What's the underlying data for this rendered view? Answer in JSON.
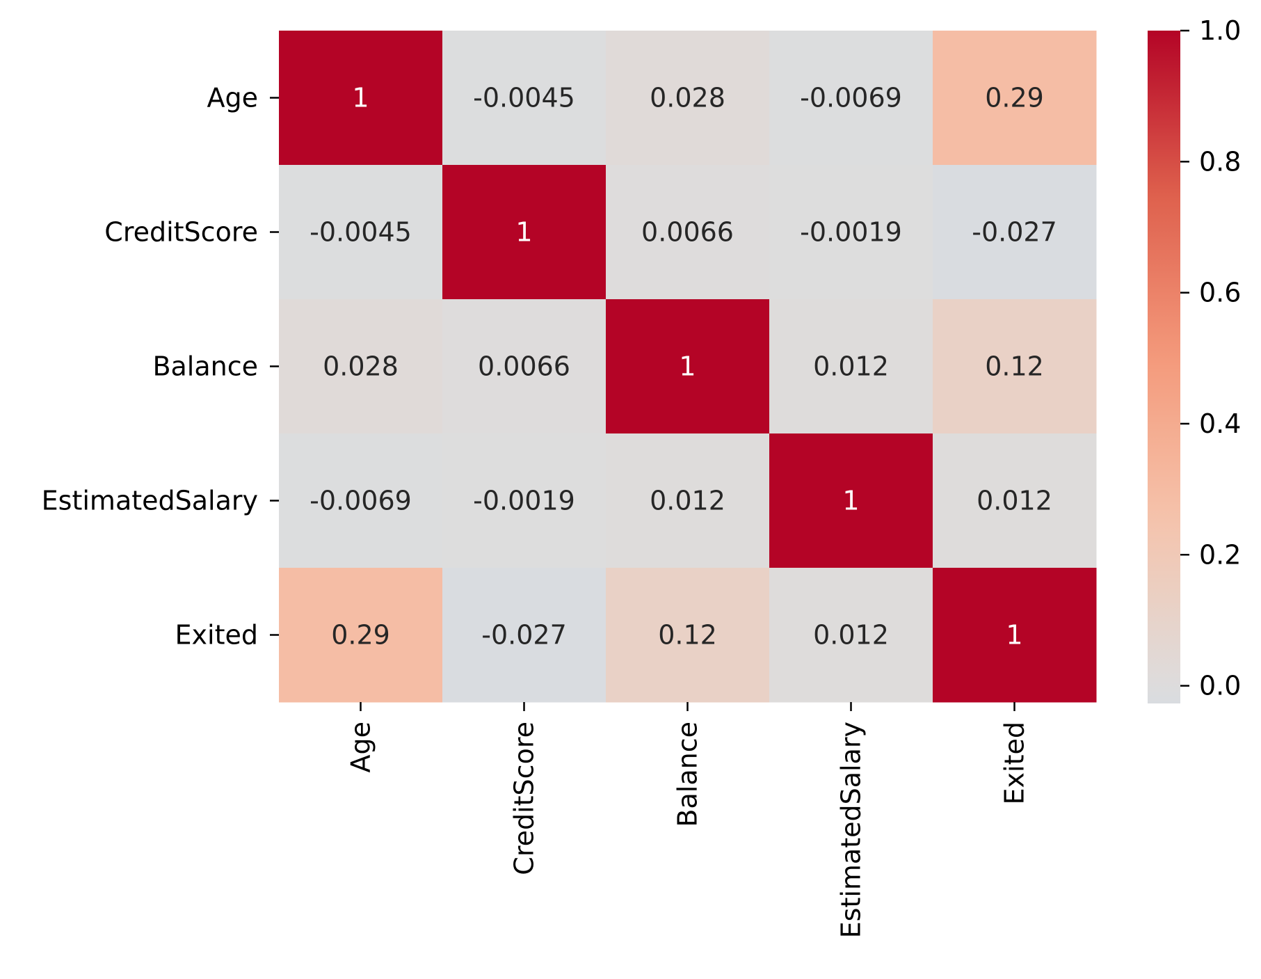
{
  "chart_data": {
    "type": "heatmap",
    "title": "",
    "xlabel": "",
    "ylabel": "",
    "x_categories": [
      "Age",
      "CreditScore",
      "Balance",
      "EstimatedSalary",
      "Exited"
    ],
    "y_categories": [
      "Age",
      "CreditScore",
      "Balance",
      "EstimatedSalary",
      "Exited"
    ],
    "values": [
      [
        1,
        -0.0045,
        0.028,
        -0.0069,
        0.29
      ],
      [
        -0.0045,
        1,
        0.0066,
        -0.0019,
        -0.027
      ],
      [
        0.028,
        0.0066,
        1,
        0.012,
        0.12
      ],
      [
        -0.0069,
        -0.0019,
        0.012,
        1,
        0.012
      ],
      [
        0.29,
        -0.027,
        0.12,
        0.012,
        1
      ]
    ],
    "annotations": [
      [
        "1",
        "-0.0045",
        "0.028",
        "-0.0069",
        "0.29"
      ],
      [
        "-0.0045",
        "1",
        "0.0066",
        "-0.0019",
        "-0.027"
      ],
      [
        "0.028",
        "0.0066",
        "1",
        "0.012",
        "0.12"
      ],
      [
        "-0.0069",
        "-0.0019",
        "0.012",
        "1",
        "0.012"
      ],
      [
        "0.29",
        "-0.027",
        "0.12",
        "0.012",
        "1"
      ]
    ],
    "colormap": "coolwarm",
    "color_center": 0,
    "colorbar": {
      "vmin": -0.027,
      "vmax": 1.0,
      "ticks": [
        0.0,
        0.2,
        0.4,
        0.6,
        0.8,
        1.0
      ],
      "tick_labels": [
        "0.0",
        "0.2",
        "0.4",
        "0.6",
        "0.8",
        "1.0"
      ]
    },
    "annotation_colors": {
      "dark_text": "#262626",
      "light_text": "#ffffff"
    },
    "x_tick_rotation": "vertical",
    "legend_placement": "right"
  }
}
